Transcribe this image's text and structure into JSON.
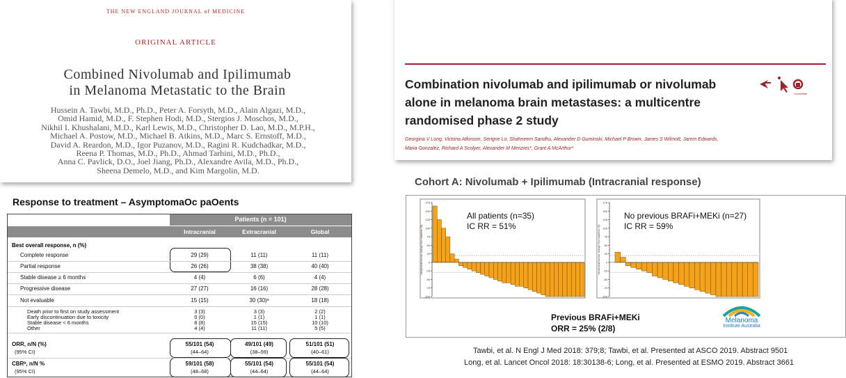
{
  "nejm": {
    "journal": "THE NEW ENGLAND JOURNAL of MEDICINE",
    "section": "ORIGINAL ARTICLE",
    "title": [
      "Combined Nivolumab and Ipilimumab",
      "in Melanoma Metastatic to the Brain"
    ],
    "authors": [
      "Hussein A. Tawbi, M.D., Ph.D., Peter A. Forsyth, M.D., Alain Algazi, M.D.,",
      "Omid Hamid, M.D., F. Stephen Hodi, M.D., Stergios J. Moschos, M.D.,",
      "Nikhil I. Khushalani, M.D., Karl Lewis, M.D., Christopher D. Lao, M.D., M.P.H.,",
      "Michael A. Postow, M.D., Michael B. Atkins, M.D., Marc S. Ernstoff, M.D.,",
      "David A. Reardon, M.D., Igor Puzanov, M.D., Ragini R. Kudchadkar, M.D.,",
      "Reena P. Thomas, M.D., Ph.D., Ahmad Tarhini, M.D., Ph.D.,",
      "Anna C. Pavlick, D.O., Joel Jiang, Ph.D., Alexandre Avila, M.D., Ph.D.,",
      "Sheena Demelo, M.D., and Kim Margolin, M.D."
    ]
  },
  "lancet": {
    "title": [
      "Combination nivolumab and ipilimumab or nivolumab",
      "alone in melanoma brain metastases: a multicentre",
      "randomised phase 2 study"
    ],
    "authors": [
      "Georgina V Long, Victoria Atkinson, Serigne Lo, Shahneem Sandhu, Alexander D Guminski, Michael P Brown, James S Wilmott, Jarem Edwards,",
      "Maria Gonzalez, Richard A Scolyer, Alexander M Menzies*, Grant A McArthur*"
    ],
    "crossmark": "CrossMark"
  },
  "table": {
    "title": "Response to treatment – AsymptomaOc paOents",
    "group_header": "Patients (n = 101)",
    "columns": [
      "Intracranial",
      "Extracranial",
      "Global"
    ],
    "section": "Best overall response, n (%)",
    "rows": [
      [
        "Complete response",
        "29 (29)",
        "11 (11)",
        "11 (11)"
      ],
      [
        "Partial response",
        "26 (26)",
        "38 (38)",
        "40 (40)"
      ],
      [
        "Stable disease ≥ 6 months",
        "4 (4)",
        "6 (6)",
        "4 (4)"
      ],
      [
        "Progressive disease",
        "27 (27)",
        "16 (16)",
        "28 (28)"
      ],
      [
        "Not evaluable",
        "15 (15)",
        "30 (30)ᵃ",
        "18 (18)"
      ],
      [
        "Death prior to first on study assessment",
        "3 (3)",
        "3 (3)",
        "2 (2)"
      ],
      [
        "Early discontinuation due to toxicity",
        "0 (0)",
        "1 (1)",
        "1 (1)"
      ],
      [
        "Stable disease < 6 months",
        "8 (8)",
        "15 (15)",
        "10 (10)"
      ],
      [
        "Other",
        "4 (4)",
        "11 (11)",
        "5 (5)"
      ],
      [
        "ORR, n/N (%)",
        "55/101 (54)",
        "49/101 (49)",
        "51/101 (51)"
      ],
      [
        "(95% CI)",
        "(44–64)",
        "(38–59)",
        "(40–61)"
      ],
      [
        "CBRᵇ, n/N %",
        "59/101 (58)",
        "55/101 (54)",
        "55/101 (54)"
      ],
      [
        "(95% CI)",
        "(48–68)",
        "(44–64)",
        "(44–64)"
      ]
    ]
  },
  "cohort": {
    "title": "Cohort A: Nivolumab + Ipilimumab (Intracranial response)",
    "previous": [
      "Previous BRAFi+MEKi",
      "ORR = 25% (2/8)"
    ]
  },
  "chart_data": [
    {
      "type": "bar",
      "annotation": [
        "All patients (n=35)",
        "IC RR = 51%"
      ],
      "y_label": "Intracranial tumour change from baseline (%)",
      "color": "#f5a21b",
      "values": [
        165,
        125,
        100,
        75,
        25,
        10,
        -10,
        -15,
        -20,
        -25,
        -30,
        -35,
        -40,
        -45,
        -50,
        -55,
        -60,
        -60,
        -65,
        -70,
        -70,
        -75,
        -80,
        -85,
        -90,
        -95,
        -100,
        -100,
        -100,
        -100,
        -100,
        -100,
        -100,
        -100,
        -100
      ],
      "ylim": [
        -100,
        175
      ],
      "yticks": [
        -100,
        -75,
        -50,
        -25,
        0,
        25,
        50,
        75,
        100,
        125,
        150,
        175
      ],
      "reference_lines": [
        20,
        -30
      ]
    },
    {
      "type": "bar",
      "annotation": [
        "No previous BRAFi+MEKi (n=27)",
        "IC RR = 59%"
      ],
      "y_label": "Intracranial tumour change from baseline (%)",
      "color": "#f5a21b",
      "values": [
        30,
        15,
        -10,
        -15,
        -20,
        -25,
        -30,
        -40,
        -45,
        -50,
        -55,
        -60,
        -65,
        -70,
        -75,
        -80,
        -85,
        -90,
        -95,
        -100,
        -100,
        -100,
        -100,
        -100,
        -100,
        -100,
        -100
      ],
      "ylim": [
        -100,
        175
      ],
      "yticks": [
        -100,
        -75,
        -50,
        -25,
        0,
        25,
        50,
        75,
        100,
        125,
        150,
        175
      ],
      "reference_lines": [
        20,
        -30
      ]
    }
  ],
  "logo": [
    "Melanoma",
    "Institute Australia"
  ],
  "references": [
    "Tawbi, et al. N Engl J Med 2018: 379;8; Tawbi, et al. Presented at ASCO 2019. Abstract 9501",
    "Long, et al. Lancet Oncol 2018: 18:30138-6; Long, et al. Presented at ESMO 2019. Abstract 3661"
  ]
}
